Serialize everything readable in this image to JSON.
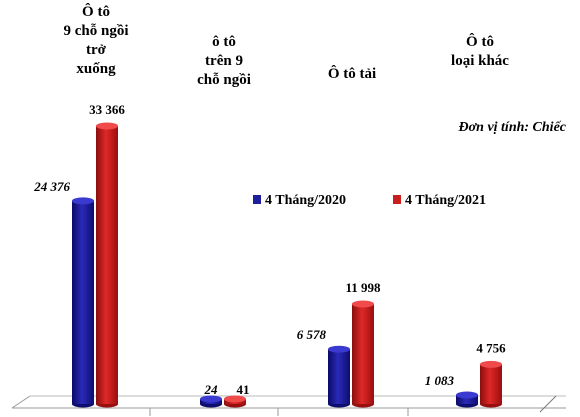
{
  "chart_data": {
    "type": "bar",
    "unit_note": "Đơn vị tính: Chiếc",
    "categories": [
      [
        "Ô tô",
        "9 chỗ ngồi",
        "trở",
        "xuống"
      ],
      [
        "ô tô",
        "trên 9",
        "chỗ ngồi"
      ],
      [
        "Ô tô tải"
      ],
      [
        "Ô tô",
        "loại khác"
      ]
    ],
    "series": [
      {
        "name": "4 Tháng/2020",
        "color": "#1f1f9c",
        "values": [
          24376,
          24,
          6578,
          1083
        ],
        "labels": [
          "24 376",
          "24",
          "6 578",
          "1 083"
        ]
      },
      {
        "name": "4 Tháng/2021",
        "color": "#c81e1e",
        "values": [
          33366,
          41,
          11998,
          4756
        ],
        "labels": [
          "33 366",
          "41",
          "11 998",
          "4 756"
        ]
      }
    ],
    "ylim": [
      0,
      40000
    ],
    "legend_position": "middle-right"
  }
}
